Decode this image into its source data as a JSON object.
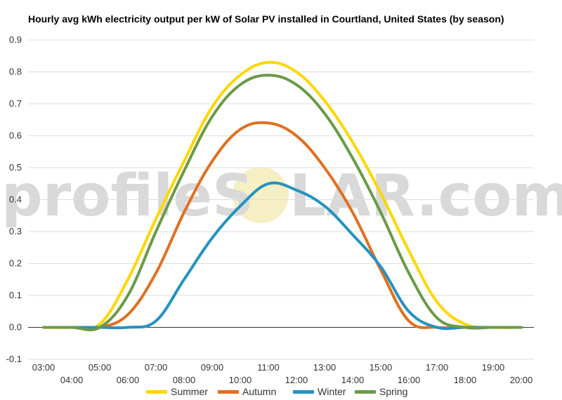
{
  "watermark": {
    "left": "profileS",
    "right": "LAR.com"
  },
  "chart_data": {
    "type": "line",
    "title": "Hourly avg kWh electricity output per kW of Solar PV installed in Courtland, United States (by season)",
    "xlabel": "",
    "ylabel": "",
    "x": [
      "03:00",
      "04:00",
      "05:00",
      "06:00",
      "07:00",
      "08:00",
      "09:00",
      "10:00",
      "11:00",
      "12:00",
      "13:00",
      "14:00",
      "15:00",
      "16:00",
      "17:00",
      "18:00",
      "19:00",
      "20:00"
    ],
    "x_ticks_upper": [
      "03:00",
      "05:00",
      "07:00",
      "09:00",
      "11:00",
      "13:00",
      "15:00",
      "17:00",
      "19:00"
    ],
    "x_ticks_lower": [
      "04:00",
      "06:00",
      "08:00",
      "10:00",
      "12:00",
      "14:00",
      "16:00",
      "18:00",
      "20:00"
    ],
    "ylim": [
      -0.1,
      0.9
    ],
    "yticks": [
      "-0.1",
      "0.0",
      "0.1",
      "0.2",
      "0.3",
      "0.4",
      "0.5",
      "0.6",
      "0.7",
      "0.8",
      "0.9"
    ],
    "grid": true,
    "legend_position": "bottom",
    "series": [
      {
        "name": "Summer",
        "color": "#ffd700",
        "values": [
          0,
          0,
          0.01,
          0.15,
          0.34,
          0.52,
          0.69,
          0.79,
          0.83,
          0.8,
          0.71,
          0.58,
          0.42,
          0.24,
          0.08,
          0.01,
          0,
          0
        ]
      },
      {
        "name": "Autumn",
        "color": "#e07020",
        "values": [
          0,
          0,
          0,
          0.04,
          0.17,
          0.36,
          0.52,
          0.62,
          0.64,
          0.6,
          0.5,
          0.36,
          0.18,
          0.02,
          0,
          0,
          0,
          0
        ]
      },
      {
        "name": "Winter",
        "color": "#2592bf",
        "values": [
          0,
          0,
          0,
          0,
          0.02,
          0.15,
          0.28,
          0.38,
          0.45,
          0.43,
          0.38,
          0.29,
          0.19,
          0.05,
          0,
          0,
          0,
          0
        ]
      },
      {
        "name": "Spring",
        "color": "#6b9a48",
        "values": [
          0,
          0,
          0,
          0.1,
          0.3,
          0.49,
          0.66,
          0.76,
          0.79,
          0.76,
          0.67,
          0.53,
          0.36,
          0.17,
          0.03,
          0,
          0,
          0
        ]
      }
    ]
  }
}
